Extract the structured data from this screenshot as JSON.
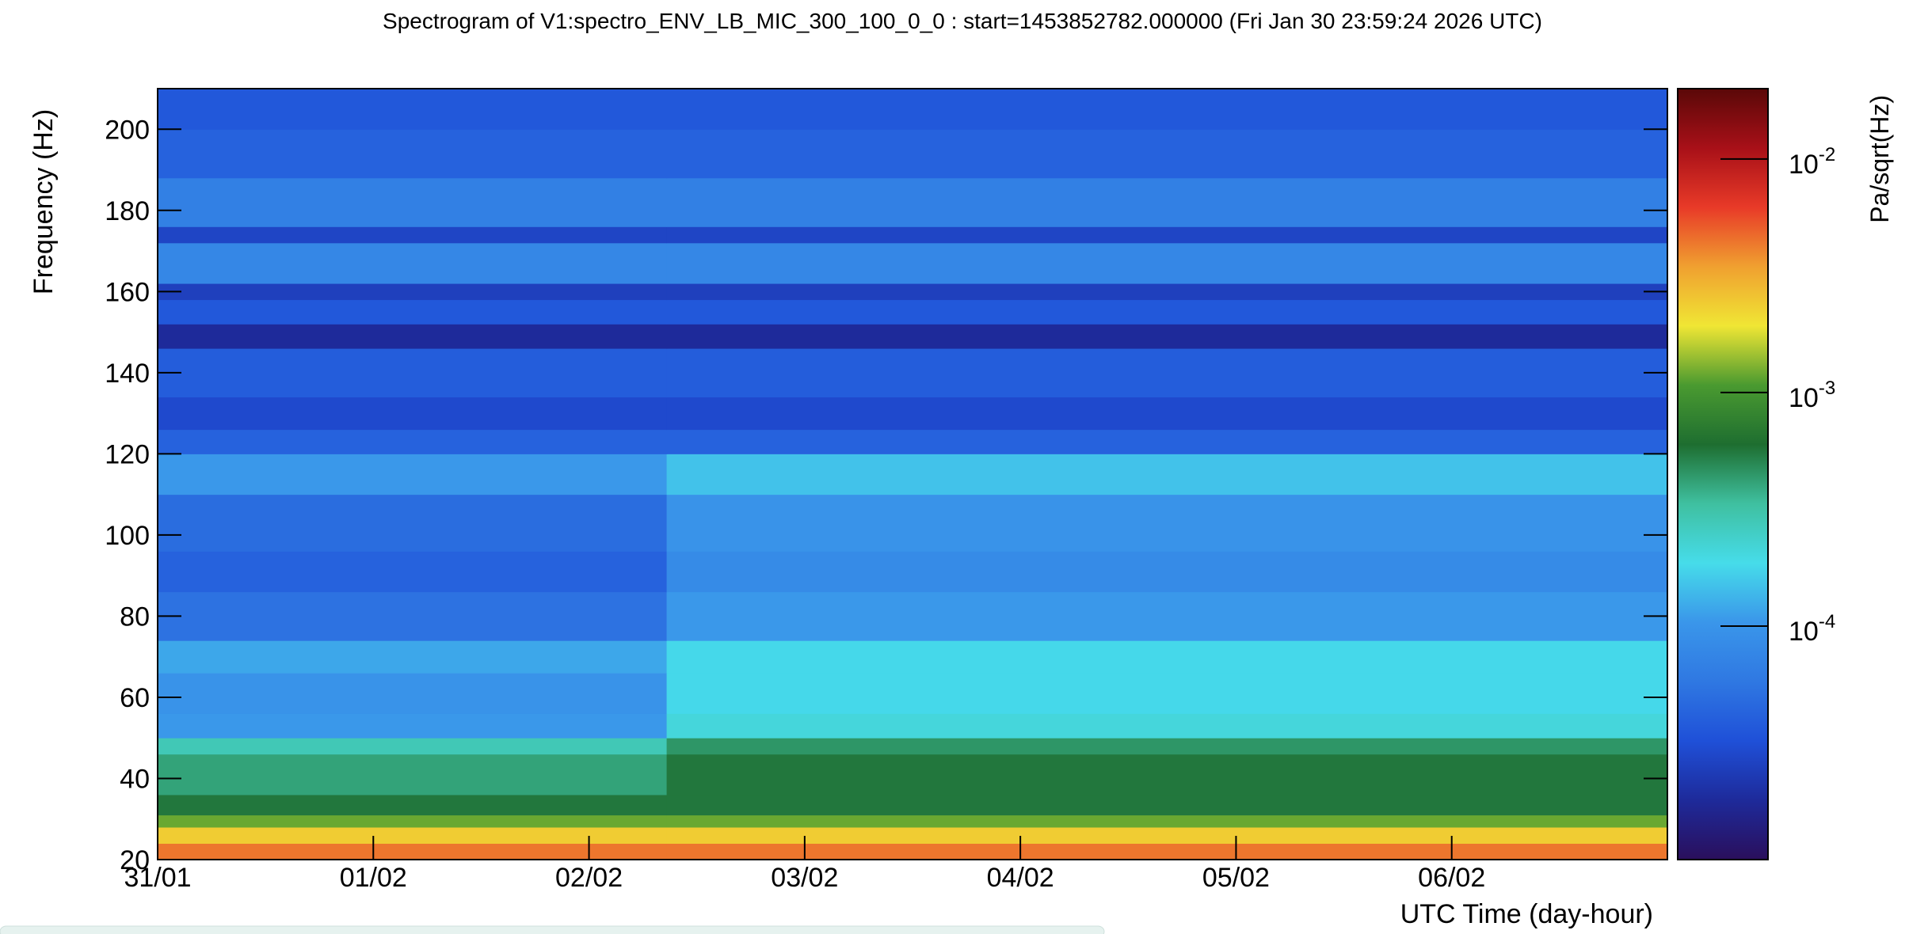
{
  "chart_data": {
    "type": "heatmap",
    "title": "Spectrogram of V1:spectro_ENV_LB_MIC_300_100_0_0 : start=1453852782.000000 (Fri Jan 30 23:59:24 2026 UTC)",
    "x_label": "UTC Time (day-hour)",
    "y_label": "Frequency (Hz)",
    "z_label": "Pa/sqrt(Hz)",
    "xlim": [
      0,
      7
    ],
    "xticks": [
      {
        "value": 0,
        "label": "31/01"
      },
      {
        "value": 1,
        "label": "01/02"
      },
      {
        "value": 2,
        "label": "02/02"
      },
      {
        "value": 3,
        "label": "03/02"
      },
      {
        "value": 4,
        "label": "04/02"
      },
      {
        "value": 5,
        "label": "05/02"
      },
      {
        "value": 6,
        "label": "06/02"
      }
    ],
    "ylim": [
      20,
      210
    ],
    "yticks": [
      20,
      40,
      60,
      80,
      100,
      120,
      140,
      160,
      180,
      200
    ],
    "zlim": [
      1e-05,
      0.02
    ],
    "z_log_scale": true,
    "zticks": [
      {
        "value": 0.01,
        "label": "10",
        "exponent": "-2"
      },
      {
        "value": 0.001,
        "label": "10",
        "exponent": "-3"
      },
      {
        "value": 0.0001,
        "label": "10",
        "exponent": "-4"
      }
    ],
    "colormap": [
      "#2a0f5c",
      "#1e2a9a",
      "#1f50d8",
      "#2f78e2",
      "#3a96ea",
      "#46dcea",
      "#3fc0a0",
      "#1e6e30",
      "#4a9a30",
      "#f0e634",
      "#f0a030",
      "#e83a28",
      "#a81018",
      "#5a0808"
    ],
    "x_bins": [
      0,
      2.36,
      7
    ],
    "y_bins": [
      20,
      24,
      28,
      31,
      36,
      46,
      50,
      56,
      66,
      74,
      86,
      96,
      110,
      120,
      126,
      134,
      146,
      152,
      158,
      162,
      172,
      176,
      188,
      200,
      210
    ],
    "values": [
      [
        0.0044,
        0.0044
      ],
      [
        0.0024,
        0.0024
      ],
      [
        0.0012,
        0.0012
      ],
      [
        0.00056,
        0.00056
      ],
      [
        0.00041,
        0.00056
      ],
      [
        0.00028,
        0.00045
      ],
      [
        0.000105,
        0.00021
      ],
      [
        9.8e-05,
        0.00018
      ],
      [
        0.00012,
        0.00018
      ],
      [
        5.3e-05,
        0.000105
      ],
      [
        4.2e-05,
        8.4e-05
      ],
      [
        4.9e-05,
        9.8e-05
      ],
      [
        0.000105,
        0.00015
      ],
      [
        4.2e-05,
        4.2e-05
      ],
      [
        2.9e-05,
        2.9e-05
      ],
      [
        3.9e-05,
        3.9e-05
      ],
      [
        1.8e-05,
        1.8e-05
      ],
      [
        3.6e-05,
        3.6e-05
      ],
      [
        2.5e-05,
        2.5e-05
      ],
      [
        7.8e-05,
        7.8e-05
      ],
      [
        2.7e-05,
        2.7e-05
      ],
      [
        6.7e-05,
        6.7e-05
      ],
      [
        4.2e-05,
        4.2e-05
      ],
      [
        3.6e-05,
        3.6e-05
      ]
    ]
  }
}
